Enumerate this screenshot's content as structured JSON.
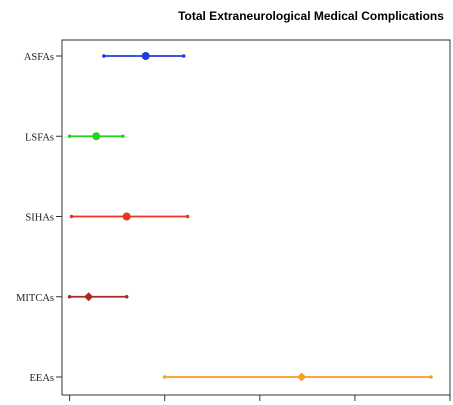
{
  "chart_data": {
    "type": "scatter",
    "subtype": "forest-plot",
    "title": "Total Extraneurological Medical Complications",
    "xlabel": "",
    "ylabel": "",
    "x_tick_labels_visible": false,
    "xlim": [
      -0.02,
      1.0
    ],
    "grid": false,
    "legend": "none",
    "categories": [
      "ASFAs",
      "LSFAs",
      "SIHAs",
      "MITCAs",
      "EEAs"
    ],
    "series": [
      {
        "category": "ASFAs",
        "estimate": 0.2,
        "lower": 0.09,
        "upper": 0.3,
        "marker": "circle",
        "color": "#1f3fd6"
      },
      {
        "category": "LSFAs",
        "estimate": 0.07,
        "lower": 0.0,
        "upper": 0.14,
        "marker": "circle",
        "color": "#22d422"
      },
      {
        "category": "SIHAs",
        "estimate": 0.15,
        "lower": 0.005,
        "upper": 0.31,
        "marker": "circle",
        "color": "#ee3322"
      },
      {
        "category": "MITCAs",
        "estimate": 0.05,
        "lower": 0.0,
        "upper": 0.15,
        "marker": "diamond",
        "color": "#a42b22"
      },
      {
        "category": "EEAs",
        "estimate": 0.61,
        "lower": 0.25,
        "upper": 0.95,
        "marker": "diamond",
        "color": "#f4a020"
      }
    ]
  }
}
